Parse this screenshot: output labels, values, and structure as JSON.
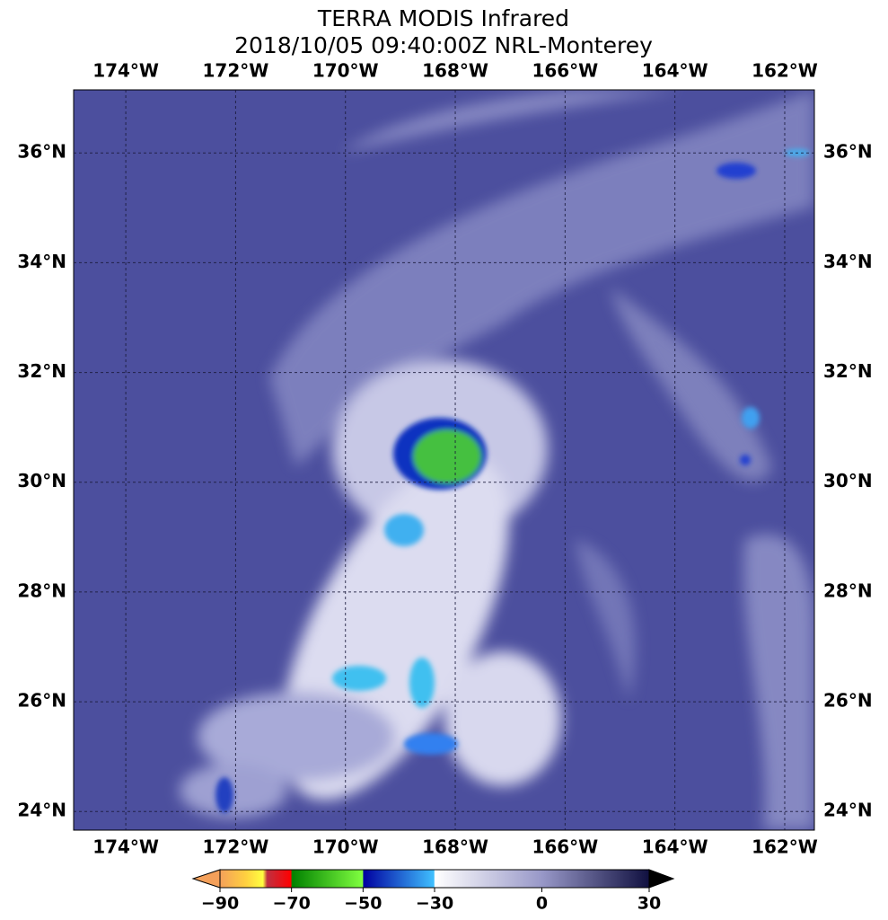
{
  "map": {
    "title": [
      "TERRA MODIS Infrared",
      "2018/10/05 09:40:00Z NRL-Monterey"
    ],
    "lonlim": [
      -174.95,
      -161.46
    ],
    "latlim": [
      23.66,
      37.15
    ],
    "lonticks": [
      {
        "value": -174,
        "label": "174°W"
      },
      {
        "value": -172,
        "label": "172°W"
      },
      {
        "value": -170,
        "label": "170°W"
      },
      {
        "value": -168,
        "label": "168°W"
      },
      {
        "value": -166,
        "label": "166°W"
      },
      {
        "value": -164,
        "label": "164°W"
      },
      {
        "value": -162,
        "label": "162°W"
      }
    ],
    "latticks": [
      {
        "value": 36,
        "label": "36°N"
      },
      {
        "value": 34,
        "label": "34°N"
      },
      {
        "value": 32,
        "label": "32°N"
      },
      {
        "value": 30,
        "label": "30°N"
      },
      {
        "value": 28,
        "label": "28°N"
      },
      {
        "value": 26,
        "label": "26°N"
      },
      {
        "value": 24,
        "label": "24°N"
      }
    ],
    "colorbar": {
      "range": [
        -90,
        30
      ],
      "ticks": [
        {
          "value": -90,
          "label": "−90"
        },
        {
          "value": -70,
          "label": "−70"
        },
        {
          "value": -50,
          "label": "−50"
        },
        {
          "value": -30,
          "label": "−30"
        },
        0,
        30
      ]
    }
  }
}
